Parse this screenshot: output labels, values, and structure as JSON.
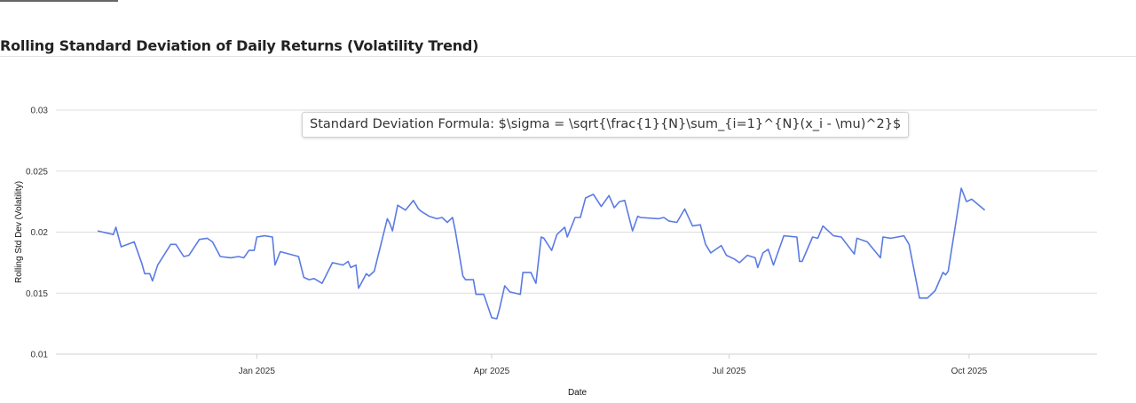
{
  "page": {
    "title": "Rolling Standard Deviation of Daily Returns (Volatility Trend)"
  },
  "chart_data": {
    "type": "line",
    "title": "",
    "xlabel": "Date",
    "ylabel": "Rolling Std Dev (Volatility)",
    "ylim": [
      0.01,
      0.03
    ],
    "yticks": [
      0.01,
      0.015,
      0.02,
      0.025,
      0.03
    ],
    "ytick_labels": [
      "0.01",
      "0.015",
      "0.02",
      "0.025",
      "0.03"
    ],
    "xlim": [
      "2024-10-16",
      "2025-11-19"
    ],
    "xticks": [
      "2025-01-01",
      "2025-04-01",
      "2025-07-01",
      "2025-10-01"
    ],
    "xtick_labels": [
      "Jan 2025",
      "Apr 2025",
      "Jul 2025",
      "Oct 2025"
    ],
    "grid": "horizontal",
    "line_color": "#5b7be3",
    "annotation": "Standard Deviation Formula: $\\sigma = \\sqrt{\\frac{1}{N}\\sum_{i=1}^{N}(x_i - \\mu)^2}$",
    "series": [
      {
        "x": [
          "2024-11-01",
          "2024-11-07",
          "2024-11-08",
          "2024-11-10",
          "2024-11-15",
          "2024-11-18",
          "2024-11-19",
          "2024-11-21",
          "2024-11-22",
          "2024-11-24",
          "2024-11-29",
          "2024-12-01",
          "2024-12-04",
          "2024-12-06",
          "2024-12-10",
          "2024-12-13",
          "2024-12-15",
          "2024-12-18",
          "2024-12-22",
          "2024-12-25",
          "2024-12-27",
          "2024-12-29",
          "2024-12-31",
          "2025-01-01",
          "2025-01-04",
          "2025-01-07",
          "2025-01-08",
          "2025-01-10",
          "2025-01-17",
          "2025-01-19",
          "2025-01-21",
          "2025-01-23",
          "2025-01-26",
          "2025-01-30",
          "2025-02-03",
          "2025-02-05",
          "2025-02-06",
          "2025-02-08",
          "2025-02-09",
          "2025-02-12",
          "2025-02-13",
          "2025-02-15",
          "2025-02-20",
          "2025-02-21",
          "2025-02-22",
          "2025-02-24",
          "2025-02-27",
          "2025-03-02",
          "2025-03-04",
          "2025-03-05",
          "2025-03-08",
          "2025-03-11",
          "2025-03-13",
          "2025-03-15",
          "2025-03-17",
          "2025-03-18",
          "2025-03-21",
          "2025-03-22",
          "2025-03-25",
          "2025-03-26",
          "2025-03-29",
          "2025-04-01",
          "2025-04-03",
          "2025-04-04",
          "2025-04-06",
          "2025-04-08",
          "2025-04-12",
          "2025-04-13",
          "2025-04-16",
          "2025-04-18",
          "2025-04-20",
          "2025-04-21",
          "2025-04-24",
          "2025-04-26",
          "2025-04-29",
          "2025-04-30",
          "2025-05-03",
          "2025-05-05",
          "2025-05-07",
          "2025-05-10",
          "2025-05-13",
          "2025-05-16",
          "2025-05-18",
          "2025-05-20",
          "2025-05-22",
          "2025-05-25",
          "2025-05-27",
          "2025-05-28",
          "2025-06-04",
          "2025-06-06",
          "2025-06-08",
          "2025-06-11",
          "2025-06-14",
          "2025-06-17",
          "2025-06-20",
          "2025-06-22",
          "2025-06-24",
          "2025-06-28",
          "2025-06-30",
          "2025-07-03",
          "2025-07-05",
          "2025-07-08",
          "2025-07-11",
          "2025-07-12",
          "2025-07-14",
          "2025-07-16",
          "2025-07-18",
          "2025-07-22",
          "2025-07-27",
          "2025-07-28",
          "2025-07-29",
          "2025-08-02",
          "2025-08-04",
          "2025-08-06",
          "2025-08-10",
          "2025-08-13",
          "2025-08-18",
          "2025-08-19",
          "2025-08-23",
          "2025-08-28",
          "2025-08-29",
          "2025-09-01",
          "2025-09-06",
          "2025-09-08",
          "2025-09-12",
          "2025-09-15",
          "2025-09-18",
          "2025-09-21",
          "2025-09-22",
          "2025-09-23",
          "2025-09-28",
          "2025-09-30",
          "2025-10-02",
          "2025-10-07"
        ],
        "y": [
          0.0201,
          0.0198,
          0.0204,
          0.0188,
          0.0192,
          0.0174,
          0.0166,
          0.0166,
          0.016,
          0.0173,
          0.019,
          0.019,
          0.018,
          0.0181,
          0.0194,
          0.0195,
          0.0192,
          0.018,
          0.0179,
          0.018,
          0.0179,
          0.0185,
          0.0185,
          0.0196,
          0.0197,
          0.0196,
          0.0173,
          0.0184,
          0.018,
          0.0163,
          0.0161,
          0.0162,
          0.0158,
          0.0175,
          0.0173,
          0.0176,
          0.0171,
          0.0173,
          0.0154,
          0.0166,
          0.0164,
          0.0168,
          0.0211,
          0.0207,
          0.0201,
          0.0222,
          0.0218,
          0.0226,
          0.0219,
          0.0217,
          0.0213,
          0.0211,
          0.0212,
          0.0208,
          0.0212,
          0.0202,
          0.0164,
          0.0161,
          0.0161,
          0.0149,
          0.0149,
          0.013,
          0.0129,
          0.0137,
          0.0156,
          0.0151,
          0.0149,
          0.0167,
          0.0167,
          0.0158,
          0.0196,
          0.0195,
          0.0185,
          0.0198,
          0.0204,
          0.0196,
          0.0212,
          0.0212,
          0.0228,
          0.0231,
          0.0221,
          0.023,
          0.022,
          0.0225,
          0.0226,
          0.0201,
          0.0213,
          0.0212,
          0.0211,
          0.0212,
          0.0209,
          0.0208,
          0.0219,
          0.0205,
          0.0206,
          0.019,
          0.0183,
          0.0189,
          0.0181,
          0.0178,
          0.0175,
          0.0181,
          0.0179,
          0.0171,
          0.0183,
          0.0186,
          0.0173,
          0.0197,
          0.0196,
          0.0176,
          0.0176,
          0.0196,
          0.0195,
          0.0205,
          0.0197,
          0.0196,
          0.0182,
          0.0195,
          0.0192,
          0.0179,
          0.0196,
          0.0195,
          0.0197,
          0.019,
          0.0146,
          0.0146,
          0.0152,
          0.0167,
          0.0165,
          0.0168,
          0.0236,
          0.0225,
          0.0227,
          0.0218
        ]
      }
    ]
  }
}
